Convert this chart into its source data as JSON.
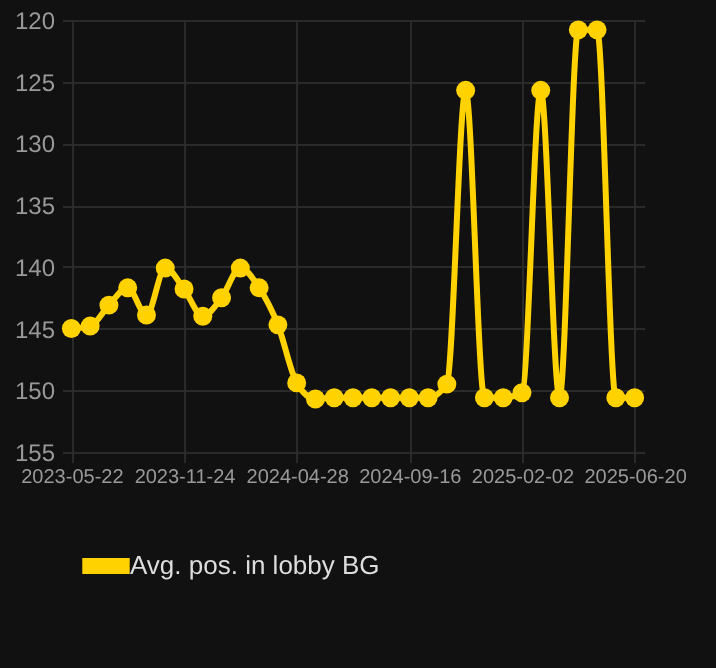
{
  "chart_data": {
    "type": "line",
    "categories": [
      "2023-05-22",
      null,
      null,
      null,
      null,
      null,
      "2023-11-24",
      null,
      null,
      null,
      null,
      null,
      "2024-04-28",
      null,
      null,
      null,
      null,
      null,
      "2024-09-16",
      null,
      null,
      null,
      null,
      null,
      "2025-02-02",
      null,
      null,
      null,
      null,
      null,
      "2025-06-20"
    ],
    "series": [
      {
        "name": "Avg. pos. in lobby BG",
        "color": "#ffd200",
        "values": [
          145,
          144.8,
          143.1,
          141.7,
          143.9,
          140.1,
          141.8,
          144,
          142.5,
          140.1,
          141.7,
          144.7,
          149.4,
          150.7,
          150.6,
          150.6,
          150.6,
          150.6,
          150.6,
          150.6,
          149.5,
          125.7,
          150.6,
          150.6,
          150.2,
          125.7,
          150.6,
          120.8,
          120.8,
          150.6,
          150.6
        ]
      }
    ],
    "ylim": [
      155,
      120
    ],
    "yticks": [
      120,
      125,
      130,
      135,
      140,
      145,
      150,
      155
    ],
    "grid": true,
    "legend": "bottom",
    "marker": "circle",
    "line_style": "solid"
  }
}
